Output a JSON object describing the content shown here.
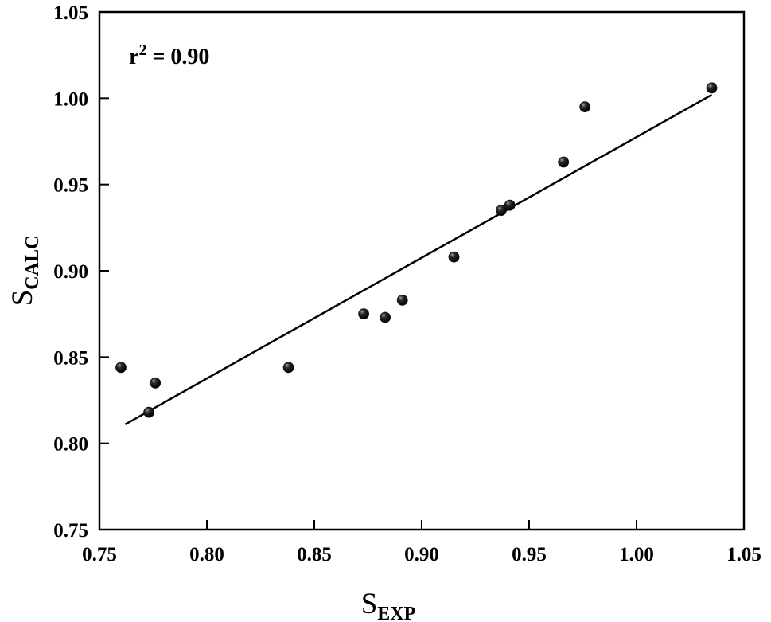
{
  "chart_data": {
    "type": "scatter",
    "title": "",
    "xlabel": {
      "main": "S",
      "sub": "EXP"
    },
    "ylabel": {
      "main": "S",
      "sub": "CALC"
    },
    "xlim": [
      0.75,
      1.05
    ],
    "ylim": [
      0.75,
      1.05
    ],
    "x_ticks": [
      "0.75",
      "0.80",
      "0.85",
      "0.90",
      "0.95",
      "1.00",
      "1.05"
    ],
    "y_ticks": [
      "0.75",
      "0.80",
      "0.85",
      "0.90",
      "0.95",
      "1.00",
      "1.05"
    ],
    "grid": false,
    "annotation": {
      "base": "r",
      "sup": "2",
      "rest": " = 0.90"
    },
    "points": [
      {
        "x": 0.76,
        "y": 0.844
      },
      {
        "x": 0.773,
        "y": 0.818
      },
      {
        "x": 0.776,
        "y": 0.835
      },
      {
        "x": 0.838,
        "y": 0.844
      },
      {
        "x": 0.873,
        "y": 0.875
      },
      {
        "x": 0.883,
        "y": 0.873
      },
      {
        "x": 0.891,
        "y": 0.883
      },
      {
        "x": 0.915,
        "y": 0.908
      },
      {
        "x": 0.937,
        "y": 0.935
      },
      {
        "x": 0.941,
        "y": 0.938
      },
      {
        "x": 0.966,
        "y": 0.963
      },
      {
        "x": 0.976,
        "y": 0.995
      },
      {
        "x": 1.035,
        "y": 1.006
      }
    ],
    "fit_line": {
      "x": [
        0.762,
        1.035
      ],
      "y": [
        0.811,
        1.002
      ]
    },
    "colors": {
      "points": "#111111",
      "line": "#000000",
      "frame": "#000000"
    }
  }
}
